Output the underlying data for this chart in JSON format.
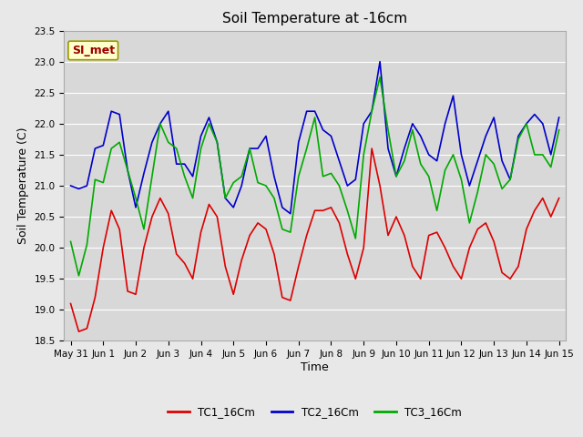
{
  "title": "Soil Temperature at -16cm",
  "xlabel": "Time",
  "ylabel": "Soil Temperature (C)",
  "ylim": [
    18.5,
    23.5
  ],
  "background_color": "#e8e8e8",
  "plot_bg_color": "#d8d8d8",
  "grid_color": "#ffffff",
  "annotation_text": "SI_met",
  "annotation_bg": "#ffffcc",
  "annotation_text_color": "#990000",
  "annotation_edge_color": "#999900",
  "colors": {
    "TC1": "#dd0000",
    "TC2": "#0000cc",
    "TC3": "#00aa00"
  },
  "legend_labels": [
    "TC1_16Cm",
    "TC2_16Cm",
    "TC3_16Cm"
  ],
  "xtick_labels": [
    "May 31",
    "Jun 1",
    "Jun 2",
    "Jun 3",
    "Jun 4",
    "Jun 5",
    "Jun 6",
    "Jun 7",
    "Jun 8",
    "Jun 9",
    "Jun 10",
    "Jun 11",
    "Jun 12",
    "Jun 13",
    "Jun 14",
    "Jun 15"
  ],
  "xtick_positions": [
    0,
    1,
    2,
    3,
    4,
    5,
    6,
    7,
    8,
    9,
    10,
    11,
    12,
    13,
    14,
    15
  ],
  "ytick_positions": [
    18.5,
    19.0,
    19.5,
    20.0,
    20.5,
    21.0,
    21.5,
    22.0,
    22.5,
    23.0,
    23.5
  ],
  "TC1_x": [
    0,
    0.25,
    0.5,
    0.75,
    1.0,
    1.25,
    1.5,
    1.75,
    2.0,
    2.25,
    2.5,
    2.75,
    3.0,
    3.25,
    3.5,
    3.75,
    4.0,
    4.25,
    4.5,
    4.75,
    5.0,
    5.25,
    5.5,
    5.75,
    6.0,
    6.25,
    6.5,
    6.75,
    7.0,
    7.25,
    7.5,
    7.75,
    8.0,
    8.25,
    8.5,
    8.75,
    9.0,
    9.25,
    9.5,
    9.75,
    10.0,
    10.25,
    10.5,
    10.75,
    11.0,
    11.25,
    11.5,
    11.75,
    12.0,
    12.25,
    12.5,
    12.75,
    13.0,
    13.25,
    13.5,
    13.75,
    14.0,
    14.25,
    14.5,
    14.75,
    15.0
  ],
  "TC1_y": [
    19.1,
    18.65,
    18.7,
    19.2,
    20.0,
    20.6,
    20.3,
    19.3,
    19.25,
    20.0,
    20.5,
    20.8,
    20.55,
    19.9,
    19.75,
    19.5,
    20.25,
    20.7,
    20.5,
    19.7,
    19.25,
    19.8,
    20.2,
    20.4,
    20.3,
    19.9,
    19.2,
    19.15,
    19.7,
    20.2,
    20.6,
    20.6,
    20.65,
    20.4,
    19.9,
    19.5,
    20.0,
    21.6,
    21.0,
    20.2,
    20.5,
    20.2,
    19.7,
    19.5,
    20.2,
    20.25,
    20.0,
    19.7,
    19.5,
    20.0,
    20.3,
    20.4,
    20.1,
    19.6,
    19.5,
    19.7,
    20.3,
    20.6,
    20.8,
    20.5,
    20.8
  ],
  "TC2_x": [
    0,
    0.25,
    0.5,
    0.75,
    1.0,
    1.25,
    1.5,
    1.75,
    2.0,
    2.25,
    2.5,
    2.75,
    3.0,
    3.25,
    3.5,
    3.75,
    4.0,
    4.25,
    4.5,
    4.75,
    5.0,
    5.25,
    5.5,
    5.75,
    6.0,
    6.25,
    6.5,
    6.75,
    7.0,
    7.25,
    7.5,
    7.75,
    8.0,
    8.25,
    8.5,
    8.75,
    9.0,
    9.25,
    9.5,
    9.75,
    10.0,
    10.25,
    10.5,
    10.75,
    11.0,
    11.25,
    11.5,
    11.75,
    12.0,
    12.25,
    12.5,
    12.75,
    13.0,
    13.25,
    13.5,
    13.75,
    14.0,
    14.25,
    14.5,
    14.75,
    15.0
  ],
  "TC2_y": [
    21.0,
    20.95,
    21.0,
    21.6,
    21.65,
    22.2,
    22.15,
    21.25,
    20.65,
    21.2,
    21.7,
    22.0,
    22.2,
    21.35,
    21.35,
    21.15,
    21.8,
    22.1,
    21.7,
    20.8,
    20.65,
    21.0,
    21.6,
    21.6,
    21.8,
    21.15,
    20.65,
    20.55,
    21.7,
    22.2,
    22.2,
    21.9,
    21.8,
    21.4,
    21.0,
    21.1,
    22.0,
    22.2,
    23.0,
    21.6,
    21.15,
    21.6,
    22.0,
    21.8,
    21.5,
    21.4,
    22.0,
    22.45,
    21.5,
    21.0,
    21.4,
    21.8,
    22.1,
    21.4,
    21.1,
    21.8,
    22.0,
    22.15,
    22.0,
    21.5,
    22.1
  ],
  "TC3_x": [
    0,
    0.25,
    0.5,
    0.75,
    1.0,
    1.25,
    1.5,
    1.75,
    2.0,
    2.25,
    2.5,
    2.75,
    3.0,
    3.25,
    3.5,
    3.75,
    4.0,
    4.25,
    4.5,
    4.75,
    5.0,
    5.25,
    5.5,
    5.75,
    6.0,
    6.25,
    6.5,
    6.75,
    7.0,
    7.25,
    7.5,
    7.75,
    8.0,
    8.25,
    8.5,
    8.75,
    9.0,
    9.25,
    9.5,
    9.75,
    10.0,
    10.25,
    10.5,
    10.75,
    11.0,
    11.25,
    11.5,
    11.75,
    12.0,
    12.25,
    12.5,
    12.75,
    13.0,
    13.25,
    13.5,
    13.75,
    14.0,
    14.25,
    14.5,
    14.75,
    15.0
  ],
  "TC3_y": [
    20.1,
    19.55,
    20.05,
    21.1,
    21.05,
    21.6,
    21.7,
    21.25,
    20.8,
    20.3,
    21.15,
    22.0,
    21.7,
    21.6,
    21.15,
    20.8,
    21.6,
    22.0,
    21.7,
    20.8,
    21.05,
    21.15,
    21.6,
    21.05,
    21.0,
    20.8,
    20.3,
    20.25,
    21.15,
    21.6,
    22.1,
    21.15,
    21.2,
    21.0,
    20.6,
    20.15,
    21.5,
    22.2,
    22.75,
    21.9,
    21.15,
    21.4,
    21.9,
    21.35,
    21.15,
    20.6,
    21.25,
    21.5,
    21.1,
    20.4,
    20.9,
    21.5,
    21.35,
    20.95,
    21.1,
    21.75,
    22.0,
    21.5,
    21.5,
    21.3,
    21.9
  ],
  "linewidth": 1.2,
  "title_fontsize": 11,
  "axis_label_fontsize": 9,
  "tick_fontsize": 7.5
}
